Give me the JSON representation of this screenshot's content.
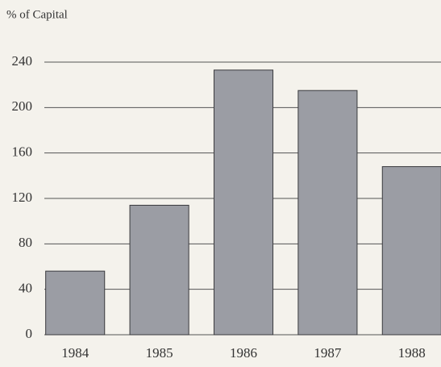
{
  "chart_data": {
    "type": "bar",
    "title": "% of Capital",
    "categories": [
      "1984",
      "1985",
      "1986",
      "1987",
      "1988"
    ],
    "values": [
      56,
      114,
      233,
      215,
      148
    ],
    "color": "#9b9da4",
    "ylim": [
      0,
      240
    ],
    "yticks": [
      0,
      40,
      80,
      120,
      160,
      200,
      240
    ],
    "grid": true
  }
}
